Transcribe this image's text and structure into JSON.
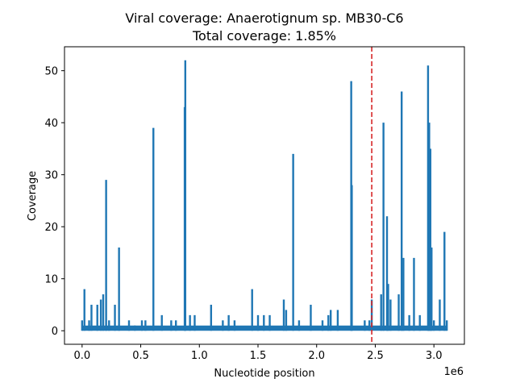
{
  "chart_data": {
    "type": "line",
    "title": "Viral coverage: Anaerotignum sp. MB30-C6",
    "subtitle": "Total coverage: 1.85%",
    "xlabel": "Nucleotide position",
    "ylabel": "Coverage",
    "x_offset_label": "1e6",
    "xlim": [
      -150000,
      3260000
    ],
    "ylim": [
      -2.6,
      54.6
    ],
    "x_ticks": [
      0,
      500000,
      1000000,
      1500000,
      2000000,
      2500000,
      3000000
    ],
    "x_tick_labels": [
      "0.0",
      "0.5",
      "1.0",
      "1.5",
      "2.0",
      "2.5",
      "3.0"
    ],
    "y_ticks": [
      0,
      10,
      20,
      30,
      40,
      50
    ],
    "y_tick_labels": [
      "0",
      "10",
      "20",
      "30",
      "40",
      "50"
    ],
    "grid": false,
    "series": [
      {
        "color": "#1f77b4",
        "peaks": [
          [
            0,
            2
          ],
          [
            20000,
            8
          ],
          [
            60000,
            2
          ],
          [
            80000,
            5
          ],
          [
            130000,
            5
          ],
          [
            160000,
            6
          ],
          [
            180000,
            7
          ],
          [
            205000,
            29
          ],
          [
            230000,
            2
          ],
          [
            280000,
            5
          ],
          [
            315000,
            16
          ],
          [
            400000,
            2
          ],
          [
            450000,
            1
          ],
          [
            510000,
            2
          ],
          [
            540000,
            2
          ],
          [
            608000,
            39
          ],
          [
            680000,
            3
          ],
          [
            760000,
            2
          ],
          [
            800000,
            2
          ],
          [
            880000,
            52
          ],
          [
            875000,
            43
          ],
          [
            920000,
            3
          ],
          [
            960000,
            3
          ],
          [
            1100000,
            5
          ],
          [
            1200000,
            2
          ],
          [
            1250000,
            3
          ],
          [
            1300000,
            2
          ],
          [
            1450000,
            8
          ],
          [
            1500000,
            3
          ],
          [
            1550000,
            3
          ],
          [
            1600000,
            3
          ],
          [
            1720000,
            6
          ],
          [
            1740000,
            4
          ],
          [
            1800000,
            34
          ],
          [
            1850000,
            2
          ],
          [
            1950000,
            5
          ],
          [
            2050000,
            2
          ],
          [
            2100000,
            3
          ],
          [
            2120000,
            4
          ],
          [
            2180000,
            4
          ],
          [
            2295000,
            48
          ],
          [
            2300000,
            28
          ],
          [
            2410000,
            2
          ],
          [
            2450000,
            2
          ],
          [
            2470000,
            6
          ],
          [
            2550000,
            7
          ],
          [
            2570000,
            40
          ],
          [
            2600000,
            22
          ],
          [
            2610000,
            9
          ],
          [
            2630000,
            6
          ],
          [
            2700000,
            7
          ],
          [
            2725000,
            46
          ],
          [
            2740000,
            14
          ],
          [
            2790000,
            3
          ],
          [
            2830000,
            14
          ],
          [
            2880000,
            3
          ],
          [
            2950000,
            51
          ],
          [
            2960000,
            40
          ],
          [
            2970000,
            35
          ],
          [
            2980000,
            16
          ],
          [
            3000000,
            2
          ],
          [
            3050000,
            6
          ],
          [
            3090000,
            19
          ],
          [
            3110000,
            2
          ]
        ]
      }
    ],
    "reference_line": {
      "x": 2470000,
      "color": "#d62728",
      "style": "dashed"
    }
  }
}
